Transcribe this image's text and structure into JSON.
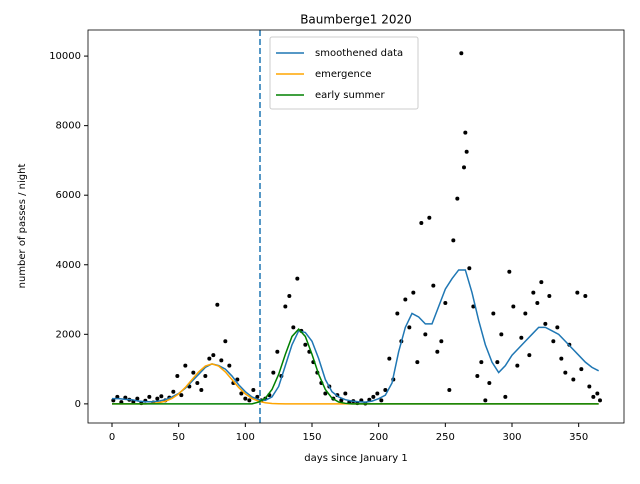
{
  "chart_data": {
    "type": "line",
    "title": "Baumberge1 2020",
    "xlabel": "days since January 1",
    "ylabel": "number of passes / night",
    "xlim": [
      -18,
      384
    ],
    "ylim": [
      -550,
      10750
    ],
    "xticks": [
      0,
      50,
      100,
      150,
      200,
      250,
      300,
      350
    ],
    "yticks": [
      0,
      2000,
      4000,
      6000,
      8000,
      10000
    ],
    "vline": {
      "x": 111,
      "color": "#1f77b4"
    },
    "points": {
      "color": "#000000",
      "x": [
        1,
        4,
        7,
        10,
        13,
        16,
        19,
        22,
        25,
        28,
        31,
        34,
        37,
        40,
        43,
        46,
        49,
        52,
        55,
        58,
        61,
        64,
        67,
        70,
        73,
        76,
        79,
        82,
        85,
        88,
        91,
        94,
        97,
        100,
        103,
        106,
        109,
        112,
        115,
        118,
        121,
        124,
        127,
        130,
        133,
        136,
        139,
        142,
        145,
        148,
        151,
        154,
        157,
        160,
        163,
        166,
        169,
        172,
        175,
        178,
        181,
        184,
        187,
        190,
        193,
        196,
        199,
        202,
        205,
        208,
        211,
        214,
        217,
        220,
        223,
        226,
        229,
        232,
        235,
        238,
        241,
        244,
        247,
        250,
        253,
        256,
        259,
        262,
        264,
        265,
        266,
        268,
        271,
        274,
        277,
        280,
        283,
        286,
        289,
        292,
        295,
        298,
        301,
        304,
        307,
        310,
        313,
        316,
        319,
        322,
        325,
        328,
        331,
        334,
        337,
        340,
        343,
        346,
        349,
        352,
        355,
        358,
        361,
        364,
        366
      ],
      "y": [
        100,
        200,
        50,
        180,
        120,
        60,
        150,
        20,
        90,
        200,
        40,
        150,
        220,
        100,
        180,
        350,
        800,
        250,
        1100,
        500,
        900,
        600,
        400,
        800,
        1300,
        1400,
        2850,
        1250,
        1800,
        1100,
        600,
        700,
        300,
        150,
        100,
        400,
        200,
        100,
        150,
        250,
        900,
        1500,
        800,
        2800,
        3100,
        2200,
        3600,
        2100,
        1700,
        1500,
        1200,
        900,
        600,
        300,
        500,
        150,
        250,
        100,
        300,
        50,
        80,
        20,
        100,
        10,
        120,
        200,
        300,
        100,
        400,
        1300,
        700,
        2600,
        1800,
        3000,
        2200,
        3200,
        1200,
        5200,
        2000,
        5350,
        3400,
        1500,
        1800,
        2900,
        400,
        4700,
        5900,
        10080,
        6800,
        7800,
        7250,
        3900,
        2800,
        800,
        1200,
        100,
        600,
        2600,
        1200,
        2000,
        200,
        3800,
        2800,
        1100,
        1900,
        2600,
        1400,
        3200,
        2900,
        3500,
        2300,
        3100,
        1800,
        2200,
        1300,
        900,
        1700,
        700,
        3200,
        1000,
        3100,
        500,
        200,
        300,
        100
      ]
    },
    "x": [
      0,
      5,
      10,
      15,
      20,
      25,
      30,
      35,
      40,
      45,
      50,
      55,
      60,
      65,
      70,
      75,
      80,
      85,
      90,
      95,
      100,
      105,
      110,
      115,
      120,
      125,
      130,
      135,
      140,
      145,
      150,
      155,
      160,
      165,
      170,
      175,
      180,
      185,
      190,
      195,
      200,
      205,
      210,
      215,
      220,
      225,
      230,
      235,
      240,
      245,
      250,
      255,
      260,
      265,
      270,
      275,
      280,
      285,
      290,
      295,
      300,
      305,
      310,
      315,
      320,
      325,
      330,
      335,
      340,
      345,
      350,
      355,
      360,
      365
    ],
    "series": [
      {
        "name": "smoothened data",
        "color": "#1f77b4",
        "values": [
          150,
          150,
          130,
          120,
          80,
          60,
          60,
          80,
          120,
          200,
          300,
          450,
          650,
          850,
          1050,
          1150,
          1100,
          1000,
          800,
          550,
          350,
          200,
          120,
          100,
          200,
          500,
          1100,
          1700,
          2100,
          2050,
          1800,
          1300,
          700,
          350,
          200,
          120,
          80,
          60,
          50,
          80,
          150,
          250,
          600,
          1500,
          2200,
          2600,
          2500,
          2300,
          2300,
          2800,
          3300,
          3600,
          3850,
          3850,
          3200,
          2400,
          1700,
          1200,
          900,
          1100,
          1400,
          1600,
          1800,
          2000,
          2200,
          2200,
          2100,
          2000,
          1800,
          1600,
          1400,
          1200,
          1050,
          950
        ]
      },
      {
        "name": "emergence",
        "color": "#ffa500",
        "values": [
          0,
          0,
          0,
          0,
          0,
          0,
          12,
          33,
          76,
          155,
          286,
          472,
          698,
          920,
          1088,
          1150,
          1088,
          920,
          698,
          472,
          286,
          155,
          76,
          33,
          12,
          5,
          0,
          0,
          0,
          0,
          0,
          0,
          0,
          0,
          0,
          0,
          0,
          0,
          0,
          0,
          0,
          0,
          0,
          0,
          0,
          0,
          0,
          0,
          0,
          0,
          0,
          0,
          0,
          0,
          0,
          0,
          0,
          0,
          0,
          0,
          0,
          0,
          0,
          0,
          0,
          0,
          0,
          0,
          0,
          0,
          0,
          0,
          0,
          0
        ]
      },
      {
        "name": "early summer",
        "color": "#008000",
        "values": [
          0,
          0,
          0,
          0,
          0,
          0,
          0,
          0,
          0,
          0,
          0,
          0,
          0,
          0,
          0,
          0,
          0,
          0,
          0,
          0,
          0,
          0,
          52,
          163,
          413,
          849,
          1423,
          1939,
          2150,
          1939,
          1423,
          849,
          413,
          163,
          52,
          16,
          0,
          0,
          0,
          0,
          0,
          0,
          0,
          0,
          0,
          0,
          0,
          0,
          0,
          0,
          0,
          0,
          0,
          0,
          0,
          0,
          0,
          0,
          0,
          0,
          0,
          0,
          0,
          0,
          0,
          0,
          0,
          0,
          0,
          0,
          0,
          0,
          0,
          0
        ]
      }
    ]
  }
}
